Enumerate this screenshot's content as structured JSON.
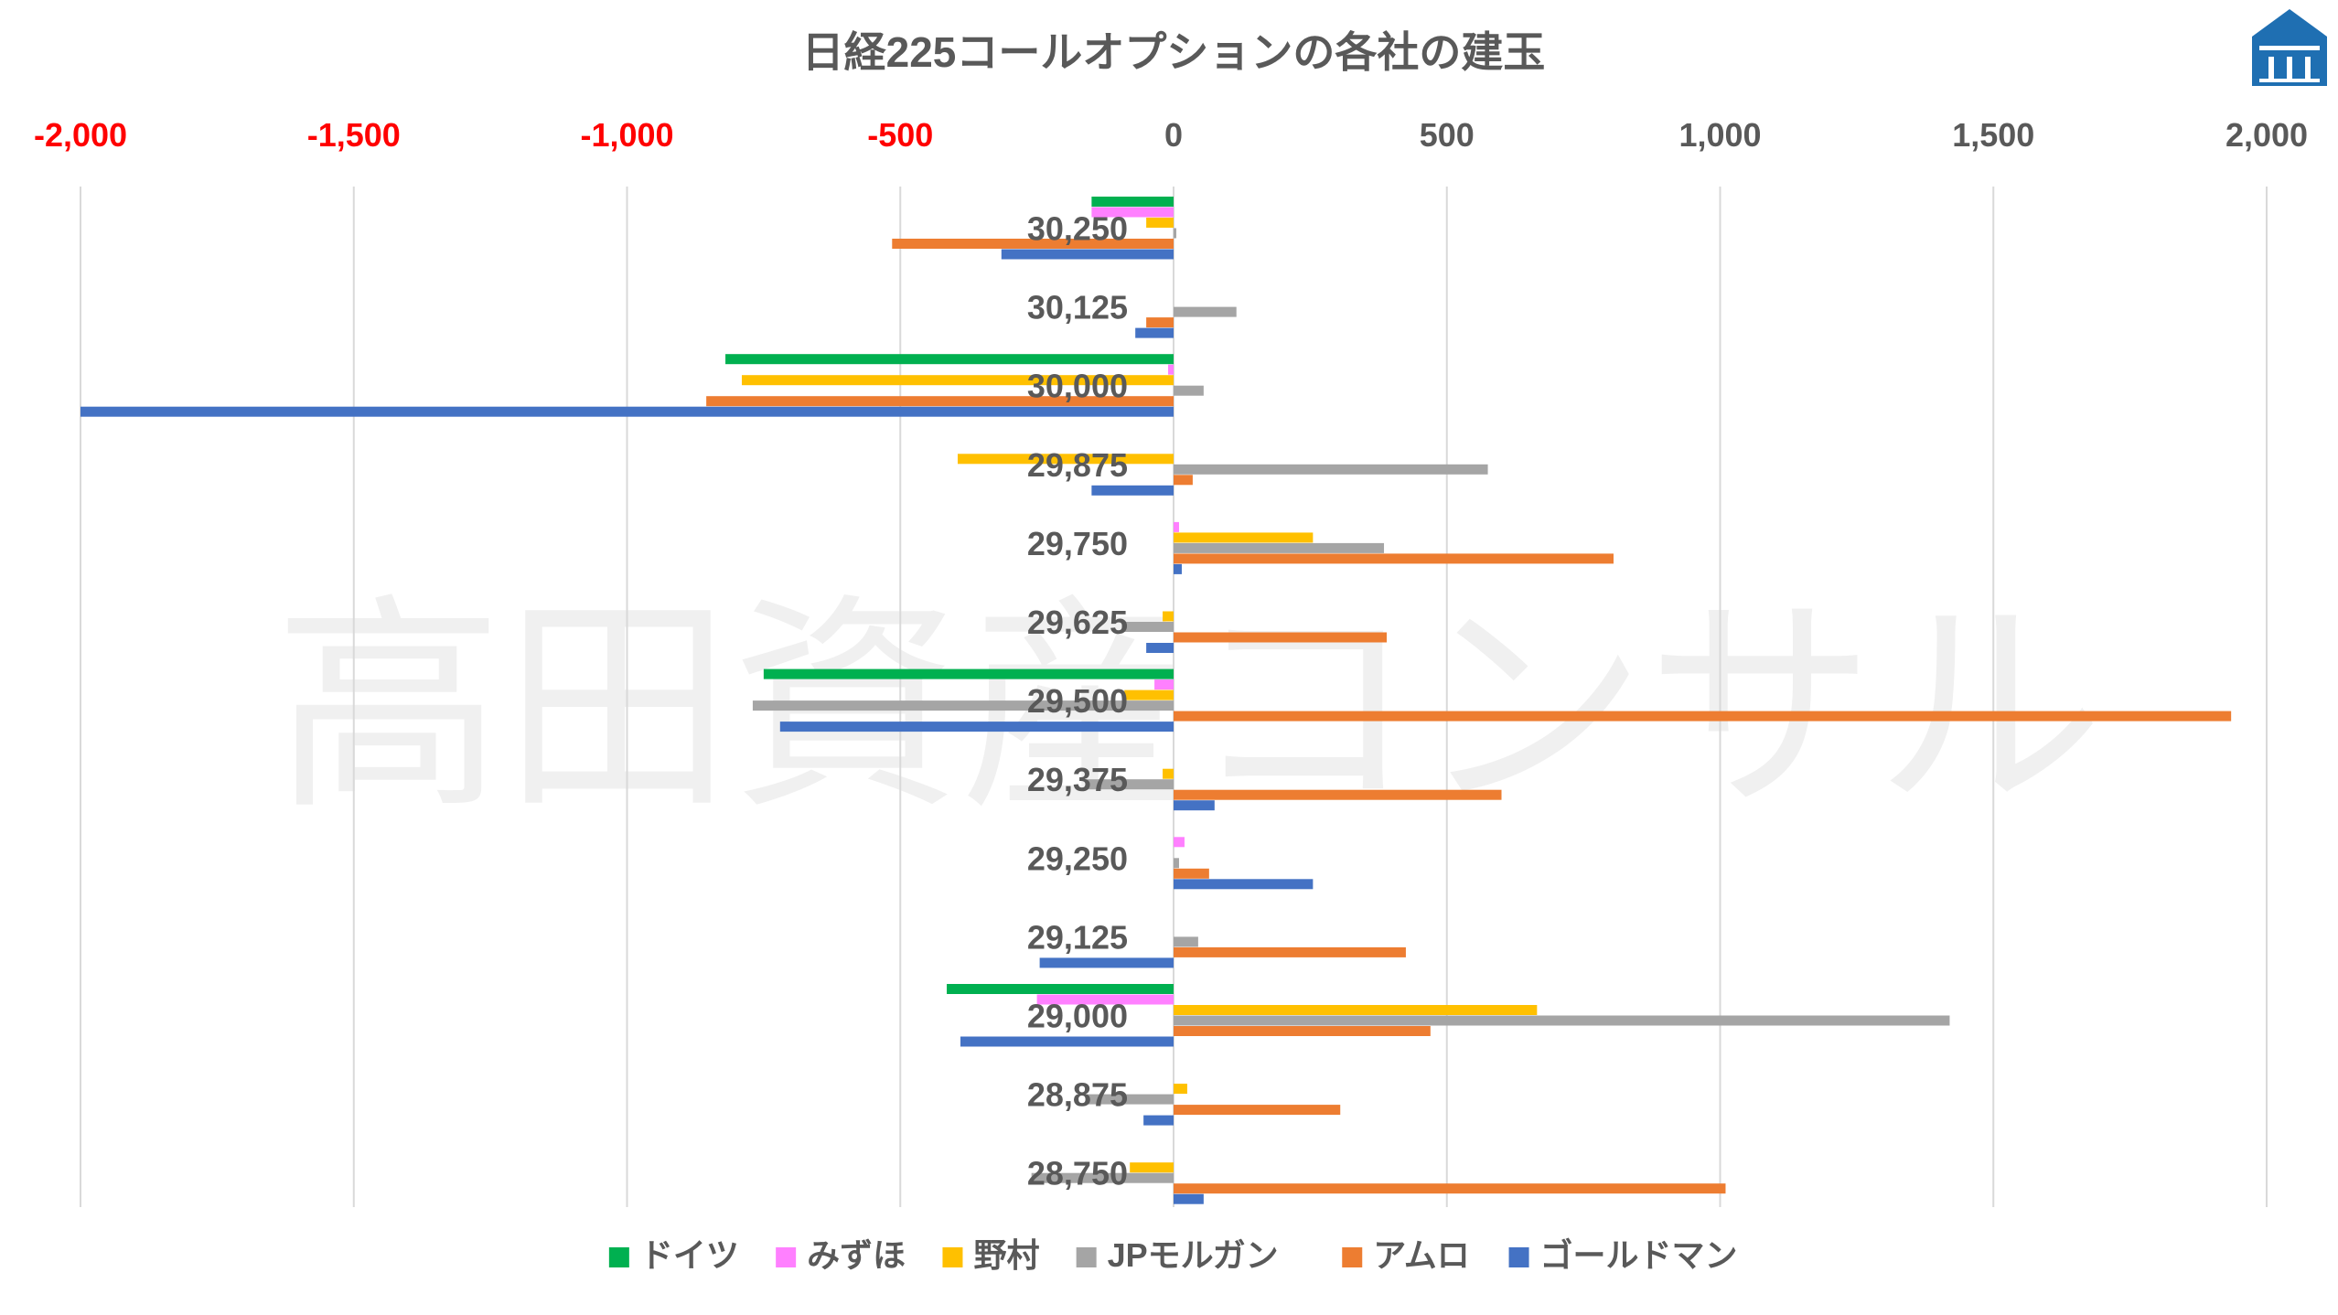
{
  "chart_data": {
    "type": "bar",
    "orientation": "horizontal",
    "title": "日経225コールオプションの各社の建玉",
    "xlim": [
      -2000,
      2000
    ],
    "x_ticks": [
      -2000,
      -1500,
      -1000,
      -500,
      0,
      500,
      1000,
      1500,
      2000
    ],
    "x_tick_labels": [
      "-2,000",
      "-1,500",
      "-1,000",
      "-500",
      "0",
      "500",
      "1,000",
      "1,500",
      "2,000"
    ],
    "negative_tick_color": "#ff0000",
    "positive_tick_color": "#595959",
    "grid": true,
    "legend_position": "bottom",
    "categories": [
      "30,250",
      "30,125",
      "30,000",
      "29,875",
      "29,750",
      "29,625",
      "29,500",
      "29,375",
      "29,250",
      "29,125",
      "29,000",
      "28,875",
      "28,750"
    ],
    "series": [
      {
        "name": "ドイツ",
        "color": "#00b050",
        "values": [
          -150,
          0,
          -820,
          0,
          0,
          0,
          -750,
          0,
          0,
          0,
          -415,
          0,
          0
        ]
      },
      {
        "name": "みずほ",
        "color": "#ff80ff",
        "values": [
          -150,
          0,
          -10,
          0,
          10,
          0,
          -35,
          0,
          20,
          0,
          -250,
          0,
          0
        ]
      },
      {
        "name": "野村",
        "color": "#ffc000",
        "values": [
          -50,
          0,
          -790,
          -395,
          255,
          -20,
          -90,
          -20,
          0,
          0,
          665,
          25,
          -80
        ]
      },
      {
        "name": "JPモルガン",
        "color": "#a5a5a5",
        "values": [
          5,
          115,
          55,
          575,
          385,
          -95,
          -770,
          -160,
          10,
          45,
          1420,
          -160,
          -260
        ]
      },
      {
        "name": "アムロ",
        "color": "#ed7d31",
        "values": [
          -515,
          -50,
          -855,
          35,
          805,
          390,
          1935,
          600,
          65,
          425,
          470,
          305,
          1010
        ]
      },
      {
        "name": "ゴールドマン",
        "color": "#4472c4",
        "values": [
          -315,
          -70,
          -2000,
          -150,
          15,
          -50,
          -720,
          75,
          255,
          -245,
          -390,
          -55,
          55
        ]
      }
    ]
  },
  "watermark": "高田資産コンサル",
  "logo": {
    "name": "house-logo",
    "color": "#1f6fb2"
  }
}
